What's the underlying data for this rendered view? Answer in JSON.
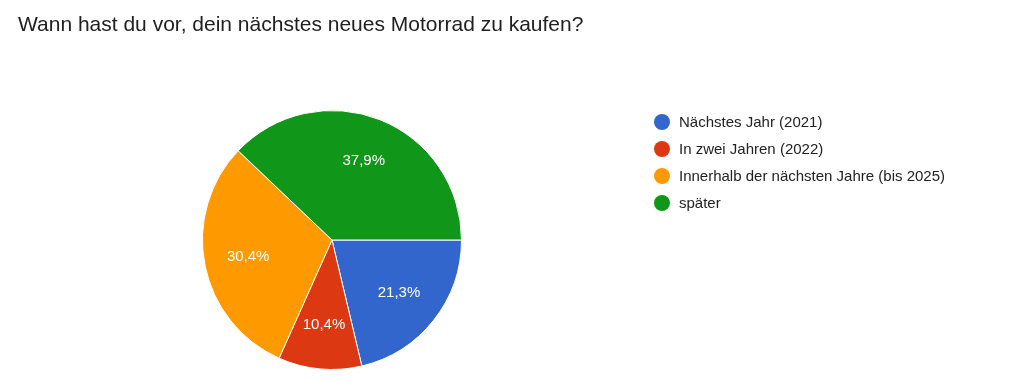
{
  "chart_data": {
    "type": "pie",
    "title": "Wann hast du vor, dein nächstes neues Motorrad zu kaufen?",
    "categories": [
      "Nächstes Jahr (2021)",
      "In zwei Jahren (2022)",
      "Innerhalb der nächsten Jahre (bis 2025)",
      "später"
    ],
    "values": [
      21.3,
      10.4,
      30.4,
      37.9
    ],
    "colors": [
      "#3366cc",
      "#dc3912",
      "#ff9900",
      "#109618"
    ],
    "value_labels": [
      "21,3%",
      "10,4%",
      "30,4%",
      "37,9%"
    ],
    "legend": "right"
  }
}
